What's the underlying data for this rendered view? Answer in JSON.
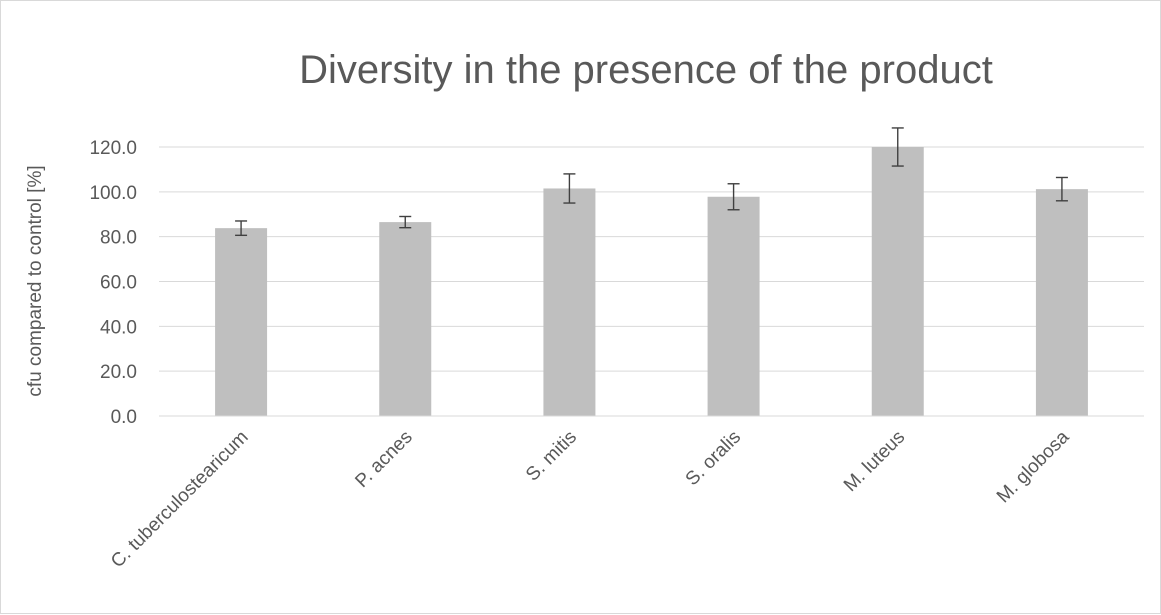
{
  "chart_data": {
    "type": "bar",
    "title": "Diversity in the presence of the product",
    "ylabel": "cfu compared to control [%]",
    "xlabel": "",
    "categories": [
      "C. tuberculostearicum",
      "P. acnes",
      "S. mitis",
      "S. oralis",
      "M. luteus",
      "M. globosa"
    ],
    "values": [
      83.8,
      86.5,
      101.5,
      97.8,
      120.0,
      101.2
    ],
    "errors": [
      3.2,
      2.5,
      6.5,
      5.8,
      8.5,
      5.2
    ],
    "ylim": [
      0,
      120
    ],
    "yticks": [
      "0.0",
      "20.0",
      "40.0",
      "60.0",
      "80.0",
      "100.0",
      "120.0"
    ],
    "grid": true,
    "legend": "none",
    "colors": {
      "bar": "#bfbfbf",
      "error": "#404040",
      "grid": "#d9d9d9",
      "text": "#595959"
    }
  }
}
